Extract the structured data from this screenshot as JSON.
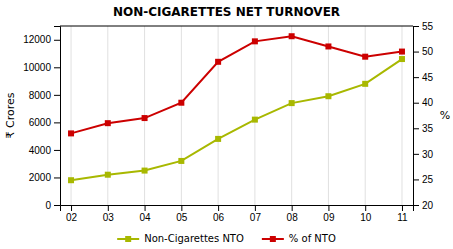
{
  "chart_data": {
    "type": "line",
    "title": "NON-CIGARETTES NET TURNOVER",
    "categories": [
      "02",
      "03",
      "04",
      "05",
      "06",
      "07",
      "08",
      "09",
      "10",
      "11"
    ],
    "series": [
      {
        "name": "Non-Cigarettes NTO",
        "color": "#a8b800",
        "marker": "square",
        "values": [
          1800,
          2200,
          2500,
          3200,
          4800,
          6200,
          7400,
          7900,
          8800,
          10600
        ]
      },
      {
        "name": "% of NTO",
        "color": "#cc0000",
        "marker": "square",
        "axis": "y2",
        "values": [
          34,
          36,
          37,
          40,
          48,
          52,
          53,
          51,
          49,
          50
        ]
      }
    ],
    "ylabel": "₹ Crores",
    "y2label": "%",
    "ylim": [
      0,
      13000
    ],
    "yticks": [
      0,
      2000,
      4000,
      6000,
      8000,
      10000,
      12000
    ],
    "y2lim": [
      20,
      55
    ],
    "y2ticks": [
      20,
      25,
      30,
      35,
      40,
      45,
      50,
      55
    ],
    "grid": "x",
    "legend": "bottom"
  }
}
